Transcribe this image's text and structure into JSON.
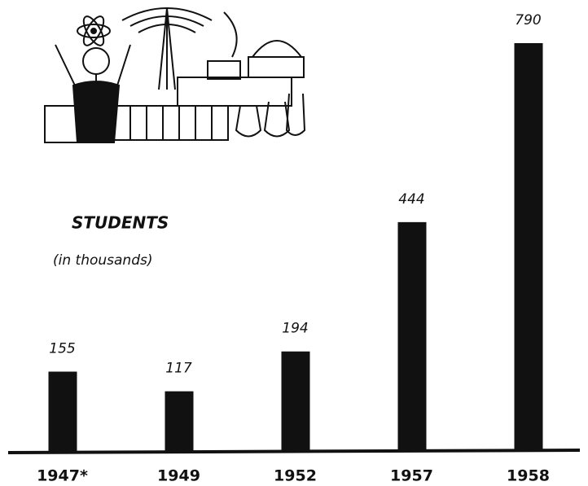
{
  "chart_data": {
    "type": "bar",
    "title": "STUDENTS",
    "subtitle": "(in thousands)",
    "categories": [
      "1947*",
      "1949",
      "1952",
      "1957",
      "1958"
    ],
    "values": [
      155,
      117,
      194,
      444,
      790
    ],
    "color": "#111111"
  }
}
